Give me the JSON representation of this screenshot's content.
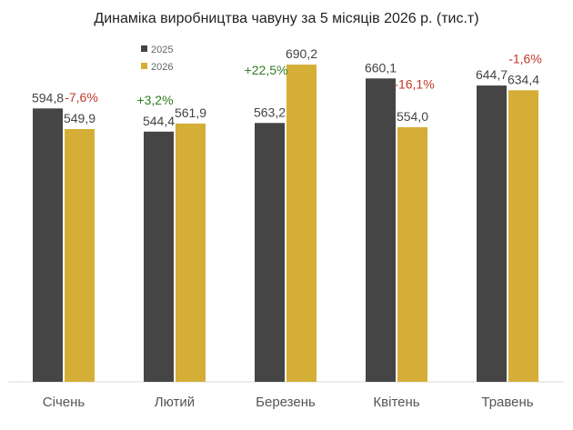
{
  "chart_data": {
    "type": "bar",
    "title": "Динаміка виробництва чавуну за 5 місяців 2026 р. (тис.т)",
    "categories": [
      "Січень",
      "Лютий",
      "Березень",
      "Квітень",
      "Травень"
    ],
    "series": [
      {
        "name": "2025",
        "values": [
          594.8,
          544.4,
          563.2,
          660.1,
          644.7
        ],
        "labels": [
          "594,8",
          "544,4",
          "563,2",
          "660,1",
          "644,7"
        ],
        "color": "#454545"
      },
      {
        "name": "2026",
        "values": [
          549.9,
          561.9,
          690.2,
          554.0,
          634.4
        ],
        "labels": [
          "549,9",
          "561,9",
          "690,2",
          "554,0",
          "634,4"
        ],
        "color": "#d4ae37"
      }
    ],
    "changes": [
      "-7,6%",
      "+3,2%",
      "+22,5%",
      "-16,1%",
      "-1,6%"
    ],
    "change_colors": {
      "positive": "#2e7d1f",
      "negative": "#c0392b"
    },
    "ylim": [
      0,
      720
    ],
    "legend_position": "top-left",
    "grid": false
  }
}
